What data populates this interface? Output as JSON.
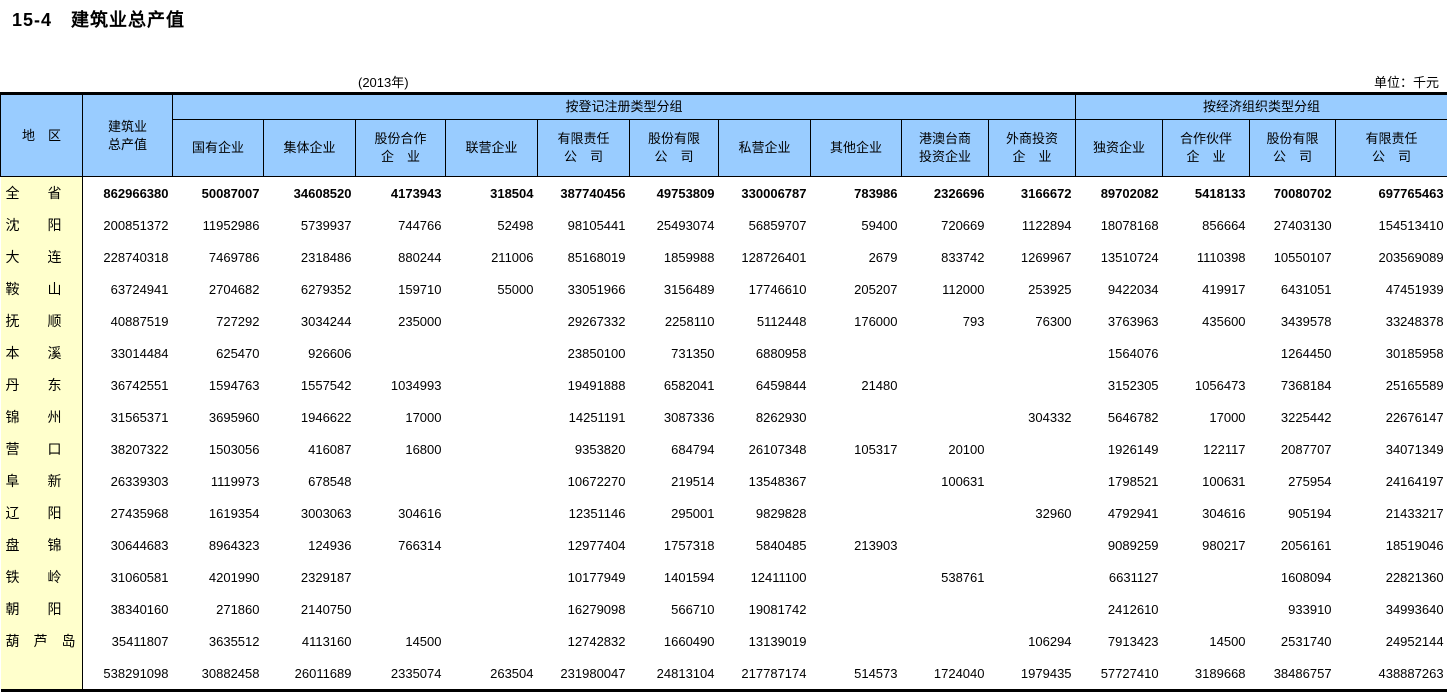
{
  "page": {
    "title": "15-4　建筑业总产值",
    "year_note": "(2013年)",
    "unit_note": "单位：千元"
  },
  "colors": {
    "header_bg": "#99CCFF",
    "region_bg": "#FFFFCC",
    "border": "#000000"
  },
  "table": {
    "header": {
      "region": "地　区",
      "total_lines": [
        "建筑业",
        "总产值"
      ],
      "group1": "按登记注册类型分组",
      "group2": "按经济组织类型分组",
      "group1_cols": [
        [
          "国有企业"
        ],
        [
          "集体企业"
        ],
        [
          "股份合作",
          "企　业"
        ],
        [
          "联营企业"
        ],
        [
          "有限责任",
          "公　司"
        ],
        [
          "股份有限",
          "公　司"
        ],
        [
          "私营企业"
        ],
        [
          "其他企业"
        ],
        [
          "港澳台商",
          "投资企业"
        ],
        [
          "外商投资",
          "企　业"
        ]
      ],
      "group2_cols": [
        [
          "独资企业"
        ],
        [
          "合作伙伴",
          "企　业"
        ],
        [
          "股份有限",
          "公　司"
        ],
        [
          "有限责任",
          "公　司"
        ]
      ]
    },
    "rows": [
      {
        "region": "全　　省",
        "bold": true,
        "values": [
          "862966380",
          "50087007",
          "34608520",
          "4173943",
          "318504",
          "387740456",
          "49753809",
          "330006787",
          "783986",
          "2326696",
          "3166672",
          "89702082",
          "5418133",
          "70080702",
          "697765463"
        ]
      },
      {
        "region": "沈　　阳",
        "bold": false,
        "values": [
          "200851372",
          "11952986",
          "5739937",
          "744766",
          "52498",
          "98105441",
          "25493074",
          "56859707",
          "59400",
          "720669",
          "1122894",
          "18078168",
          "856664",
          "27403130",
          "154513410"
        ]
      },
      {
        "region": "大　　连",
        "bold": false,
        "values": [
          "228740318",
          "7469786",
          "2318486",
          "880244",
          "211006",
          "85168019",
          "1859988",
          "128726401",
          "2679",
          "833742",
          "1269967",
          "13510724",
          "1110398",
          "10550107",
          "203569089"
        ]
      },
      {
        "region": "鞍　　山",
        "bold": false,
        "values": [
          "63724941",
          "2704682",
          "6279352",
          "159710",
          "55000",
          "33051966",
          "3156489",
          "17746610",
          "205207",
          "112000",
          "253925",
          "9422034",
          "419917",
          "6431051",
          "47451939"
        ]
      },
      {
        "region": "抚　　顺",
        "bold": false,
        "values": [
          "40887519",
          "727292",
          "3034244",
          "235000",
          "",
          "29267332",
          "2258110",
          "5112448",
          "176000",
          "793",
          "76300",
          "3763963",
          "435600",
          "3439578",
          "33248378"
        ]
      },
      {
        "region": "本　　溪",
        "bold": false,
        "values": [
          "33014484",
          "625470",
          "926606",
          "",
          "",
          "23850100",
          "731350",
          "6880958",
          "",
          "",
          "",
          "1564076",
          "",
          "1264450",
          "30185958"
        ]
      },
      {
        "region": "丹　　东",
        "bold": false,
        "values": [
          "36742551",
          "1594763",
          "1557542",
          "1034993",
          "",
          "19491888",
          "6582041",
          "6459844",
          "21480",
          "",
          "",
          "3152305",
          "1056473",
          "7368184",
          "25165589"
        ]
      },
      {
        "region": "锦　　州",
        "bold": false,
        "values": [
          "31565371",
          "3695960",
          "1946622",
          "17000",
          "",
          "14251191",
          "3087336",
          "8262930",
          "",
          "",
          "304332",
          "5646782",
          "17000",
          "3225442",
          "22676147"
        ]
      },
      {
        "region": "营　　口",
        "bold": false,
        "values": [
          "38207322",
          "1503056",
          "416087",
          "16800",
          "",
          "9353820",
          "684794",
          "26107348",
          "105317",
          "20100",
          "",
          "1926149",
          "122117",
          "2087707",
          "34071349"
        ]
      },
      {
        "region": "阜　　新",
        "bold": false,
        "values": [
          "26339303",
          "1119973",
          "678548",
          "",
          "",
          "10672270",
          "219514",
          "13548367",
          "",
          "100631",
          "",
          "1798521",
          "100631",
          "275954",
          "24164197"
        ]
      },
      {
        "region": "辽　　阳",
        "bold": false,
        "values": [
          "27435968",
          "1619354",
          "3003063",
          "304616",
          "",
          "12351146",
          "295001",
          "9829828",
          "",
          "",
          "32960",
          "4792941",
          "304616",
          "905194",
          "21433217"
        ]
      },
      {
        "region": "盘　　锦",
        "bold": false,
        "values": [
          "30644683",
          "8964323",
          "124936",
          "766314",
          "",
          "12977404",
          "1757318",
          "5840485",
          "213903",
          "",
          "",
          "9089259",
          "980217",
          "2056161",
          "18519046"
        ]
      },
      {
        "region": "铁　　岭",
        "bold": false,
        "values": [
          "31060581",
          "4201990",
          "2329187",
          "",
          "",
          "10177949",
          "1401594",
          "12411100",
          "",
          "538761",
          "",
          "6631127",
          "",
          "1608094",
          "22821360"
        ]
      },
      {
        "region": "朝　　阳",
        "bold": false,
        "values": [
          "38340160",
          "271860",
          "2140750",
          "",
          "",
          "16279098",
          "566710",
          "19081742",
          "",
          "",
          "",
          "2412610",
          "",
          "933910",
          "34993640"
        ]
      },
      {
        "region": "葫　芦　岛",
        "bold": false,
        "values": [
          "35411807",
          "3635512",
          "4113160",
          "14500",
          "",
          "12742832",
          "1660490",
          "13139019",
          "",
          "",
          "106294",
          "7913423",
          "14500",
          "2531740",
          "24952144"
        ]
      },
      {
        "region": "",
        "bold": false,
        "values": [
          "538291098",
          "30882458",
          "26011689",
          "2335074",
          "263504",
          "231980047",
          "24813104",
          "217787174",
          "514573",
          "1724040",
          "1979435",
          "57727410",
          "3189668",
          "38486757",
          "438887263"
        ]
      }
    ]
  }
}
